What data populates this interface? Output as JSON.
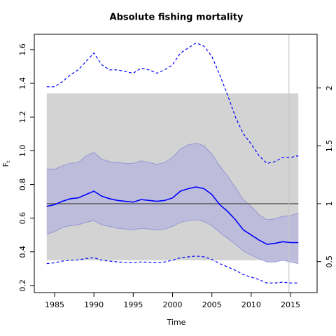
{
  "chart_data": {
    "type": "line",
    "title": "Absolute fishing mortality",
    "xlabel": "Time",
    "ylabel": "F",
    "ylabel_subscript": "t",
    "x": [
      1984,
      1985,
      1986,
      1987,
      1988,
      1989,
      1990,
      1991,
      1992,
      1993,
      1994,
      1995,
      1996,
      1997,
      1998,
      1999,
      2000,
      2001,
      2002,
      2003,
      2004,
      2005,
      2006,
      2007,
      2008,
      2009,
      2010,
      2011,
      2012,
      2013,
      2014,
      2015,
      2016
    ],
    "series": [
      {
        "color": "#0000ff",
        "dash": false,
        "values": [
          0.67,
          0.68,
          0.7,
          0.715,
          0.72,
          0.74,
          0.76,
          0.73,
          0.715,
          0.705,
          0.7,
          0.695,
          0.71,
          0.705,
          0.7,
          0.705,
          0.72,
          0.76,
          0.775,
          0.785,
          0.775,
          0.74,
          0.68,
          0.64,
          0.59,
          0.53,
          0.5,
          0.47,
          0.445,
          0.45,
          0.46,
          0.455,
          0.455
        ]
      },
      {
        "color": "#0000ff",
        "dash": true,
        "values": [
          1.38,
          1.38,
          1.41,
          1.45,
          1.48,
          1.53,
          1.58,
          1.51,
          1.48,
          1.48,
          1.47,
          1.46,
          1.49,
          1.48,
          1.46,
          1.48,
          1.51,
          1.58,
          1.61,
          1.64,
          1.62,
          1.56,
          1.45,
          1.33,
          1.2,
          1.1,
          1.04,
          0.97,
          0.925,
          0.935,
          0.96,
          0.96,
          0.97
        ]
      },
      {
        "color": "#0000ff",
        "dash": true,
        "values": [
          0.33,
          0.335,
          0.345,
          0.35,
          0.352,
          0.36,
          0.365,
          0.35,
          0.345,
          0.34,
          0.338,
          0.335,
          0.34,
          0.338,
          0.335,
          0.34,
          0.35,
          0.365,
          0.37,
          0.375,
          0.37,
          0.355,
          0.33,
          0.31,
          0.29,
          0.265,
          0.25,
          0.235,
          0.215,
          0.215,
          0.22,
          0.215,
          0.215
        ]
      }
    ],
    "band": {
      "color": "#b9b9dc",
      "upper": [
        0.89,
        0.89,
        0.91,
        0.925,
        0.93,
        0.97,
        0.99,
        0.95,
        0.935,
        0.93,
        0.925,
        0.925,
        0.94,
        0.93,
        0.92,
        0.93,
        0.96,
        1.01,
        1.035,
        1.045,
        1.03,
        0.98,
        0.91,
        0.85,
        0.78,
        0.71,
        0.67,
        0.62,
        0.59,
        0.595,
        0.61,
        0.615,
        0.63
      ],
      "lower": [
        0.505,
        0.52,
        0.545,
        0.555,
        0.56,
        0.575,
        0.585,
        0.56,
        0.55,
        0.54,
        0.535,
        0.53,
        0.54,
        0.535,
        0.53,
        0.535,
        0.55,
        0.575,
        0.585,
        0.59,
        0.58,
        0.555,
        0.515,
        0.48,
        0.445,
        0.405,
        0.38,
        0.36,
        0.34,
        0.34,
        0.35,
        0.34,
        0.33
      ]
    },
    "region": {
      "color": "#d3d3d3",
      "x": [
        1984,
        2016
      ],
      "y": [
        0.35,
        1.34
      ]
    },
    "hline_y2": 1,
    "vline_x": 2014.8,
    "xlim": [
      1982.42,
      2018.38
    ],
    "ylim": [
      0.158,
      1.691
    ],
    "y2lim": [
      0.232,
      2.464
    ],
    "xticks": [
      1985,
      1990,
      1995,
      2000,
      2005,
      2010,
      2015
    ],
    "yticks": [
      0.2,
      0.4,
      0.6,
      0.8,
      {
        "value": 1,
        "label": "1.0"
      },
      1.2,
      1.4,
      1.6
    ],
    "y2ticks": [
      0.5,
      1,
      1.5,
      2
    ]
  }
}
